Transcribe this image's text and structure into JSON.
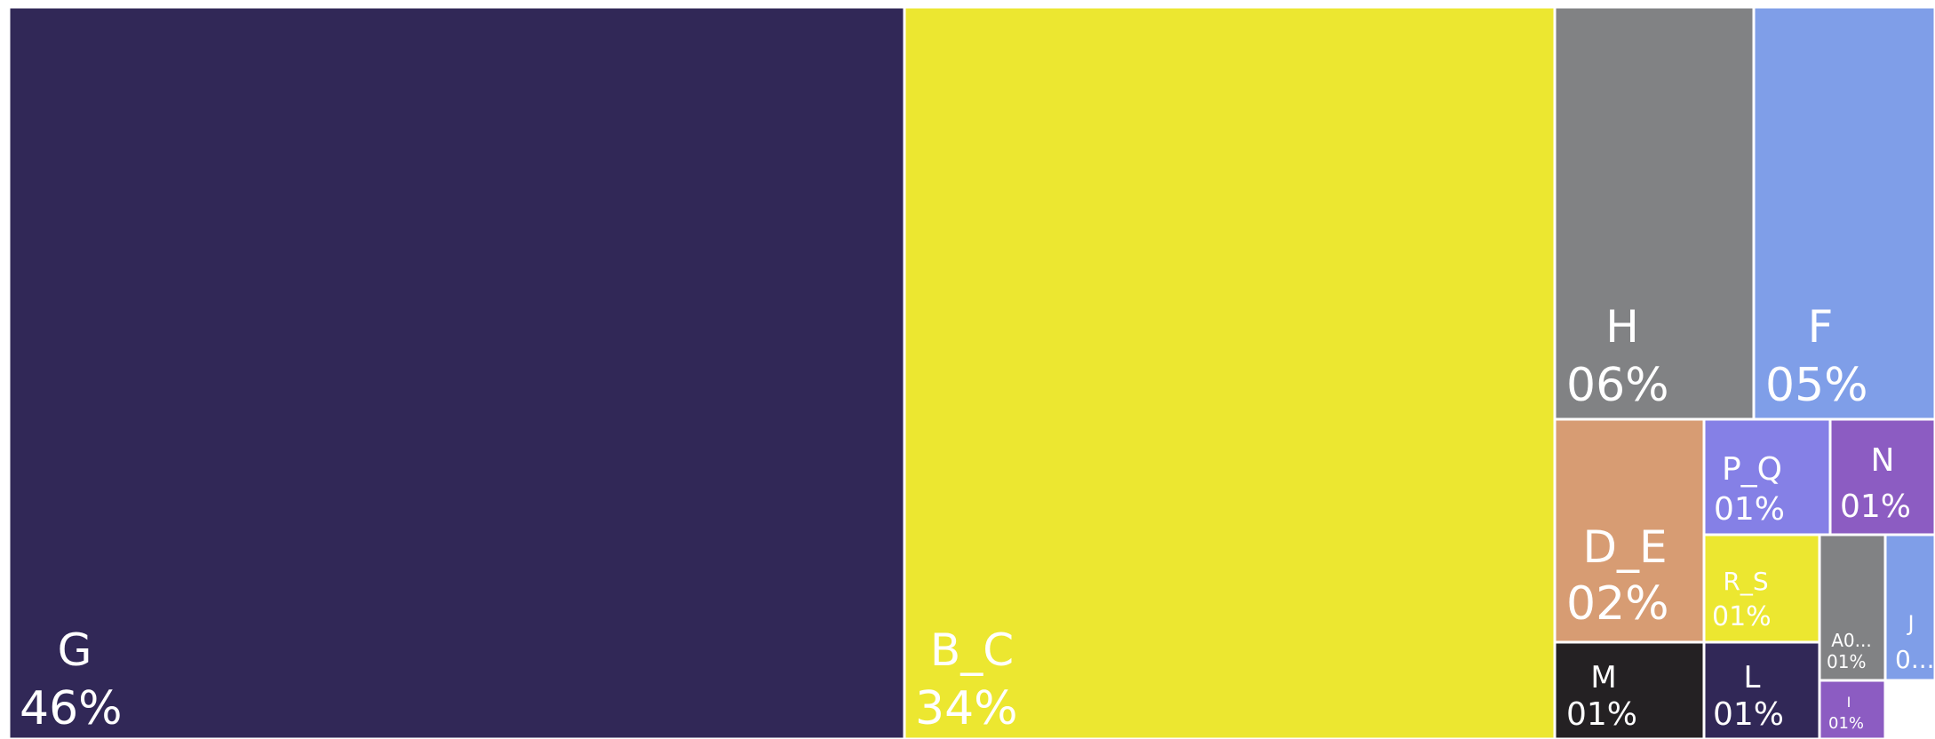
{
  "chart_data": {
    "type": "treemap",
    "title": "",
    "tiles": [
      {
        "name": "G",
        "label": "G",
        "percent_label": "46%",
        "value": 46,
        "color": "#312857",
        "text_color": "#ffffff"
      },
      {
        "name": "B_C",
        "label": "B_C",
        "percent_label": "34%",
        "value": 34,
        "color": "#ece730",
        "text_color": "#ffffff"
      },
      {
        "name": "H",
        "label": "H",
        "percent_label": "06%",
        "value": 6,
        "color": "#818284",
        "text_color": "#ffffff"
      },
      {
        "name": "F",
        "label": "F",
        "percent_label": "05%",
        "value": 5,
        "color": "#7f9ee8",
        "text_color": "#ffffff"
      },
      {
        "name": "D_E",
        "label": "D_E",
        "percent_label": "02%",
        "value": 2,
        "color": "#d79c73",
        "text_color": "#ffffff"
      },
      {
        "name": "P_Q",
        "label": "P_Q",
        "percent_label": "01%",
        "value": 1,
        "color": "#8580e6",
        "text_color": "#ffffff"
      },
      {
        "name": "N",
        "label": "N",
        "percent_label": "01%",
        "value": 1,
        "color": "#8c5cc2",
        "text_color": "#ffffff"
      },
      {
        "name": "R_S",
        "label": "R_S",
        "percent_label": "01%",
        "value": 1,
        "color": "#ece730",
        "text_color": "#ffffff"
      },
      {
        "name": "A0",
        "label": "A0...",
        "percent_label": "01%",
        "value": 1,
        "color": "#818284",
        "text_color": "#ffffff"
      },
      {
        "name": "J",
        "label": "J",
        "percent_label": "0...",
        "value": 1,
        "color": "#7f9ee8",
        "text_color": "#ffffff"
      },
      {
        "name": "M",
        "label": "M",
        "percent_label": "01%",
        "value": 1,
        "color": "#242123",
        "text_color": "#ffffff"
      },
      {
        "name": "L",
        "label": "L",
        "percent_label": "01%",
        "value": 1,
        "color": "#312857",
        "text_color": "#ffffff"
      },
      {
        "name": "I",
        "label": "I",
        "percent_label": "01%",
        "value": 1,
        "color": "#8c5cc2",
        "text_color": "#ffffff"
      }
    ]
  }
}
